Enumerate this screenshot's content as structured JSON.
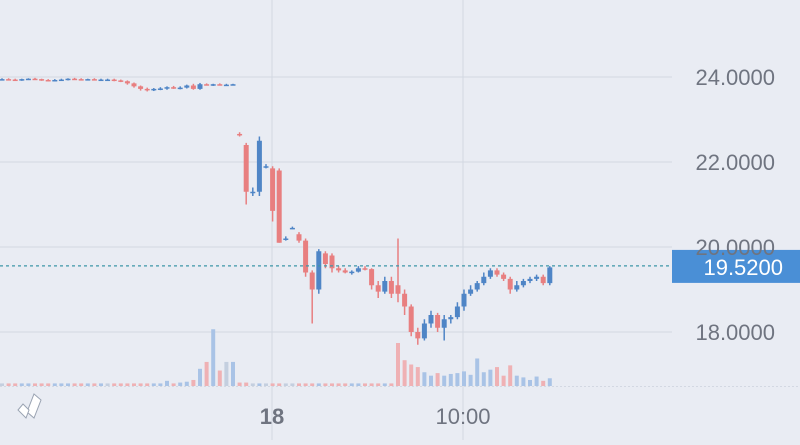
{
  "chart_data": {
    "type": "candlestick",
    "y_axis": {
      "ticks": [
        24,
        22,
        20,
        18
      ],
      "tick_labels": [
        "24.0000",
        "22.0000",
        "20.0000",
        "18.0000"
      ],
      "range": [
        16.6,
        25.6
      ],
      "side": "right"
    },
    "x_axis": {
      "tick_labels": [
        "18",
        "10:00"
      ]
    },
    "current_price": {
      "value": 19.52,
      "label": "19.5200"
    },
    "grid": true,
    "colors": {
      "background": "#e9ecf3",
      "up": "#4f85c6",
      "down": "#e87f80",
      "flat": "#4f85c6",
      "grid": "#d3d8e2",
      "price_line": "#3d96a8",
      "price_tag_bg": "#4a8fd6",
      "price_tag_text": "#ffffff",
      "axis_text": "#6f7480",
      "volume_up": "#a9c3e6",
      "volume_down": "#efb1b4",
      "volume_flat": "#c4cfdf"
    },
    "series": [
      {
        "name": "price",
        "candles": [
          {
            "t": 0,
            "o": 23.95,
            "h": 23.97,
            "l": 23.93,
            "c": 23.95,
            "v": 0.3
          },
          {
            "t": 1,
            "o": 23.95,
            "h": 23.97,
            "l": 23.93,
            "c": 23.94,
            "v": 0.3
          },
          {
            "t": 2,
            "o": 23.94,
            "h": 23.96,
            "l": 23.92,
            "c": 23.92,
            "v": 0.3
          },
          {
            "t": 3,
            "o": 23.92,
            "h": 23.96,
            "l": 23.91,
            "c": 23.95,
            "v": 0.3
          },
          {
            "t": 4,
            "o": 23.95,
            "h": 23.97,
            "l": 23.93,
            "c": 23.96,
            "v": 0.3
          },
          {
            "t": 5,
            "o": 23.96,
            "h": 23.98,
            "l": 23.94,
            "c": 23.95,
            "v": 0.3
          },
          {
            "t": 6,
            "o": 23.95,
            "h": 23.96,
            "l": 23.91,
            "c": 23.93,
            "v": 0.3
          },
          {
            "t": 7,
            "o": 23.93,
            "h": 23.95,
            "l": 23.9,
            "c": 23.92,
            "v": 0.3
          },
          {
            "t": 8,
            "o": 23.92,
            "h": 23.95,
            "l": 23.9,
            "c": 23.93,
            "v": 0.3
          },
          {
            "t": 9,
            "o": 23.93,
            "h": 23.96,
            "l": 23.91,
            "c": 23.94,
            "v": 0.3
          },
          {
            "t": 10,
            "o": 23.94,
            "h": 23.97,
            "l": 23.92,
            "c": 23.96,
            "v": 0.3
          },
          {
            "t": 11,
            "o": 23.96,
            "h": 23.98,
            "l": 23.94,
            "c": 23.95,
            "v": 0.3
          },
          {
            "t": 12,
            "o": 23.95,
            "h": 23.97,
            "l": 23.93,
            "c": 23.94,
            "v": 0.3
          },
          {
            "t": 13,
            "o": 23.94,
            "h": 23.96,
            "l": 23.92,
            "c": 23.95,
            "v": 0.3
          },
          {
            "t": 14,
            "o": 23.95,
            "h": 23.97,
            "l": 23.93,
            "c": 23.93,
            "v": 0.3
          },
          {
            "t": 15,
            "o": 23.93,
            "h": 23.96,
            "l": 23.91,
            "c": 23.94,
            "v": 0.3
          },
          {
            "t": 16,
            "o": 23.94,
            "h": 23.96,
            "l": 23.92,
            "c": 23.94,
            "v": 0.3
          },
          {
            "t": 17,
            "o": 23.94,
            "h": 23.96,
            "l": 23.9,
            "c": 23.92,
            "v": 0.3
          },
          {
            "t": 18,
            "o": 23.92,
            "h": 23.94,
            "l": 23.88,
            "c": 23.9,
            "v": 0.3
          },
          {
            "t": 19,
            "o": 23.9,
            "h": 23.92,
            "l": 23.82,
            "c": 23.85,
            "v": 0.3
          },
          {
            "t": 20,
            "o": 23.85,
            "h": 23.87,
            "l": 23.75,
            "c": 23.78,
            "v": 0.3
          },
          {
            "t": 21,
            "o": 23.78,
            "h": 23.8,
            "l": 23.68,
            "c": 23.72,
            "v": 0.3
          },
          {
            "t": 22,
            "o": 23.72,
            "h": 23.75,
            "l": 23.66,
            "c": 23.7,
            "v": 0.3
          },
          {
            "t": 23,
            "o": 23.7,
            "h": 23.74,
            "l": 23.67,
            "c": 23.72,
            "v": 0.3
          },
          {
            "t": 24,
            "o": 23.72,
            "h": 23.76,
            "l": 23.69,
            "c": 23.73,
            "v": 0.3
          },
          {
            "t": 25,
            "o": 23.73,
            "h": 23.78,
            "l": 23.7,
            "c": 23.76,
            "v": 0.6
          },
          {
            "t": 26,
            "o": 23.76,
            "h": 23.79,
            "l": 23.72,
            "c": 23.74,
            "v": 0.3
          },
          {
            "t": 27,
            "o": 23.74,
            "h": 23.78,
            "l": 23.71,
            "c": 23.75,
            "v": 0.4
          },
          {
            "t": 28,
            "o": 23.75,
            "h": 23.82,
            "l": 23.73,
            "c": 23.8,
            "v": 0.5
          },
          {
            "t": 29,
            "o": 23.8,
            "h": 23.84,
            "l": 23.7,
            "c": 23.72,
            "v": 0.7
          },
          {
            "t": 30,
            "o": 23.72,
            "h": 23.86,
            "l": 23.7,
            "c": 23.83,
            "v": 2.0
          },
          {
            "t": 31,
            "o": 23.83,
            "h": 23.85,
            "l": 23.8,
            "c": 23.82,
            "v": 2.8
          },
          {
            "t": 32,
            "o": 23.82,
            "h": 23.84,
            "l": 23.79,
            "c": 23.83,
            "v": 6.6
          },
          {
            "t": 33,
            "o": 23.83,
            "h": 23.85,
            "l": 23.8,
            "c": 23.82,
            "v": 1.8
          },
          {
            "t": 34,
            "o": 23.82,
            "h": 23.84,
            "l": 23.8,
            "c": 23.82,
            "v": 2.8
          },
          {
            "t": 35,
            "o": 23.82,
            "h": 23.84,
            "l": 23.8,
            "c": 23.83,
            "v": 2.8
          },
          {
            "t": 36,
            "o": 22.66,
            "h": 22.7,
            "l": 22.6,
            "c": 22.64,
            "v": 0.4
          },
          {
            "t": 37,
            "o": 22.4,
            "h": 22.45,
            "l": 21.0,
            "c": 21.3,
            "v": 0.4
          },
          {
            "t": 38,
            "o": 21.3,
            "h": 21.4,
            "l": 21.2,
            "c": 21.3,
            "v": 0.3
          },
          {
            "t": 39,
            "o": 21.3,
            "h": 22.6,
            "l": 21.2,
            "c": 22.5,
            "v": 0.3
          },
          {
            "t": 40,
            "o": 21.9,
            "h": 21.95,
            "l": 21.85,
            "c": 21.9,
            "v": 0.3
          },
          {
            "t": 41,
            "o": 21.85,
            "h": 21.9,
            "l": 20.6,
            "c": 20.85,
            "v": 0.3
          },
          {
            "t": 42,
            "o": 21.8,
            "h": 21.85,
            "l": 20.1,
            "c": 20.1,
            "v": 0.3
          },
          {
            "t": 43,
            "o": 20.2,
            "h": 20.25,
            "l": 20.15,
            "c": 20.2,
            "v": 0.3
          },
          {
            "t": 44,
            "o": 20.45,
            "h": 20.48,
            "l": 20.42,
            "c": 20.45,
            "v": 0.3
          },
          {
            "t": 45,
            "o": 20.3,
            "h": 20.35,
            "l": 20.1,
            "c": 20.15,
            "v": 0.3
          },
          {
            "t": 46,
            "o": 20.15,
            "h": 20.2,
            "l": 19.3,
            "c": 19.4,
            "v": 0.3
          },
          {
            "t": 47,
            "o": 19.4,
            "h": 19.45,
            "l": 18.2,
            "c": 19.0,
            "v": 0.3
          },
          {
            "t": 48,
            "o": 19.0,
            "h": 19.95,
            "l": 18.9,
            "c": 19.9,
            "v": 0.3
          },
          {
            "t": 49,
            "o": 19.85,
            "h": 19.9,
            "l": 19.5,
            "c": 19.6,
            "v": 0.3
          },
          {
            "t": 50,
            "o": 19.8,
            "h": 19.85,
            "l": 19.4,
            "c": 19.5,
            "v": 0.3
          },
          {
            "t": 51,
            "o": 19.5,
            "h": 19.55,
            "l": 19.4,
            "c": 19.45,
            "v": 0.3
          },
          {
            "t": 52,
            "o": 19.45,
            "h": 19.5,
            "l": 19.38,
            "c": 19.4,
            "v": 0.3
          },
          {
            "t": 53,
            "o": 19.4,
            "h": 19.45,
            "l": 19.35,
            "c": 19.42,
            "v": 0.3
          },
          {
            "t": 54,
            "o": 19.42,
            "h": 19.55,
            "l": 19.4,
            "c": 19.5,
            "v": 0.3
          },
          {
            "t": 55,
            "o": 19.5,
            "h": 19.55,
            "l": 19.45,
            "c": 19.48,
            "v": 0.3
          },
          {
            "t": 56,
            "o": 19.48,
            "h": 19.5,
            "l": 19.0,
            "c": 19.1,
            "v": 0.3
          },
          {
            "t": 57,
            "o": 19.1,
            "h": 19.2,
            "l": 18.8,
            "c": 18.95,
            "v": 0.3
          },
          {
            "t": 58,
            "o": 18.95,
            "h": 19.3,
            "l": 18.9,
            "c": 19.2,
            "v": 0.3
          },
          {
            "t": 59,
            "o": 19.2,
            "h": 19.3,
            "l": 18.8,
            "c": 18.9,
            "v": 0.3
          },
          {
            "t": 60,
            "o": 19.1,
            "h": 20.2,
            "l": 18.7,
            "c": 18.9,
            "v": 5.0
          },
          {
            "t": 61,
            "o": 18.9,
            "h": 19.0,
            "l": 18.4,
            "c": 18.6,
            "v": 3.0
          },
          {
            "t": 62,
            "o": 18.6,
            "h": 18.65,
            "l": 17.9,
            "c": 18.0,
            "v": 2.5
          },
          {
            "t": 63,
            "o": 18.0,
            "h": 18.1,
            "l": 17.7,
            "c": 17.85,
            "v": 2.2
          },
          {
            "t": 64,
            "o": 17.85,
            "h": 18.3,
            "l": 17.8,
            "c": 18.2,
            "v": 1.6
          },
          {
            "t": 65,
            "o": 18.2,
            "h": 18.5,
            "l": 18.1,
            "c": 18.4,
            "v": 1.2
          },
          {
            "t": 66,
            "o": 18.4,
            "h": 18.45,
            "l": 18.0,
            "c": 18.1,
            "v": 1.5
          },
          {
            "t": 67,
            "o": 18.1,
            "h": 18.4,
            "l": 17.8,
            "c": 18.3,
            "v": 1.2
          },
          {
            "t": 68,
            "o": 18.3,
            "h": 18.4,
            "l": 18.2,
            "c": 18.35,
            "v": 1.4
          },
          {
            "t": 69,
            "o": 18.35,
            "h": 18.7,
            "l": 18.3,
            "c": 18.6,
            "v": 1.5
          },
          {
            "t": 70,
            "o": 18.6,
            "h": 19.0,
            "l": 18.5,
            "c": 18.9,
            "v": 1.7
          },
          {
            "t": 71,
            "o": 18.9,
            "h": 19.1,
            "l": 18.85,
            "c": 19.0,
            "v": 1.3
          },
          {
            "t": 72,
            "o": 19.0,
            "h": 19.2,
            "l": 18.95,
            "c": 19.15,
            "v": 3.2
          },
          {
            "t": 73,
            "o": 19.15,
            "h": 19.4,
            "l": 19.1,
            "c": 19.3,
            "v": 1.6
          },
          {
            "t": 74,
            "o": 19.3,
            "h": 19.5,
            "l": 19.25,
            "c": 19.45,
            "v": 1.9
          },
          {
            "t": 75,
            "o": 19.45,
            "h": 19.5,
            "l": 19.3,
            "c": 19.35,
            "v": 2.2
          },
          {
            "t": 76,
            "o": 19.35,
            "h": 19.4,
            "l": 19.2,
            "c": 19.25,
            "v": 1.2
          },
          {
            "t": 77,
            "o": 19.25,
            "h": 19.3,
            "l": 18.9,
            "c": 19.0,
            "v": 2.4
          },
          {
            "t": 78,
            "o": 19.0,
            "h": 19.2,
            "l": 18.95,
            "c": 19.1,
            "v": 1.2
          },
          {
            "t": 79,
            "o": 19.1,
            "h": 19.25,
            "l": 19.05,
            "c": 19.2,
            "v": 1.0
          },
          {
            "t": 80,
            "o": 19.2,
            "h": 19.3,
            "l": 19.15,
            "c": 19.25,
            "v": 0.7
          },
          {
            "t": 81,
            "o": 19.25,
            "h": 19.35,
            "l": 19.2,
            "c": 19.3,
            "v": 1.1
          },
          {
            "t": 82,
            "o": 19.3,
            "h": 19.35,
            "l": 19.1,
            "c": 19.15,
            "v": 0.6
          },
          {
            "t": 83,
            "o": 19.15,
            "h": 19.55,
            "l": 19.1,
            "c": 19.52,
            "v": 0.9
          }
        ]
      }
    ]
  },
  "watermark": {
    "name": "brand-logo"
  }
}
